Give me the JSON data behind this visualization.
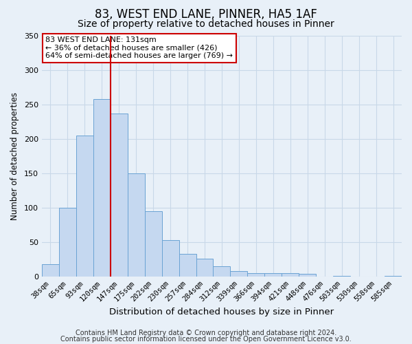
{
  "title": "83, WEST END LANE, PINNER, HA5 1AF",
  "subtitle": "Size of property relative to detached houses in Pinner",
  "xlabel": "Distribution of detached houses by size in Pinner",
  "ylabel": "Number of detached properties",
  "bar_labels": [
    "38sqm",
    "65sqm",
    "93sqm",
    "120sqm",
    "147sqm",
    "175sqm",
    "202sqm",
    "230sqm",
    "257sqm",
    "284sqm",
    "312sqm",
    "339sqm",
    "366sqm",
    "394sqm",
    "421sqm",
    "448sqm",
    "476sqm",
    "503sqm",
    "530sqm",
    "558sqm",
    "585sqm"
  ],
  "bar_heights": [
    18,
    100,
    205,
    258,
    237,
    150,
    95,
    53,
    33,
    26,
    15,
    8,
    5,
    5,
    5,
    4,
    0,
    1,
    0,
    0,
    1
  ],
  "bar_color": "#c5d8f0",
  "bar_edge_color": "#6aa3d4",
  "vline_x_index": 3,
  "vline_color": "#cc0000",
  "annotation_title": "83 WEST END LANE: 131sqm",
  "annotation_line1": "← 36% of detached houses are smaller (426)",
  "annotation_line2": "64% of semi-detached houses are larger (769) →",
  "annotation_box_color": "#ffffff",
  "annotation_box_edge": "#cc0000",
  "ylim": [
    0,
    350
  ],
  "yticks": [
    0,
    50,
    100,
    150,
    200,
    250,
    300,
    350
  ],
  "footer1": "Contains HM Land Registry data © Crown copyright and database right 2024.",
  "footer2": "Contains public sector information licensed under the Open Government Licence v3.0.",
  "bg_color": "#e8f0f8",
  "plot_bg_color": "#e8f0f8",
  "grid_color": "#c8d8e8",
  "title_fontsize": 12,
  "subtitle_fontsize": 10,
  "xlabel_fontsize": 9.5,
  "ylabel_fontsize": 8.5,
  "tick_fontsize": 7.5,
  "footer_fontsize": 7
}
